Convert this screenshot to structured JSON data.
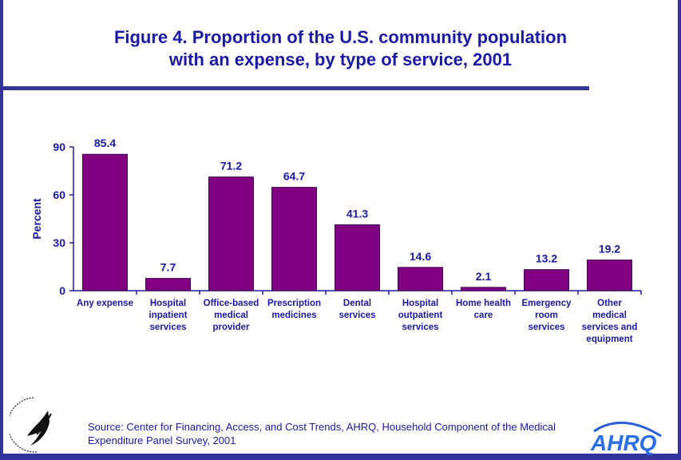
{
  "title_line1": "Figure 4. Proportion of the U.S. community population",
  "title_line2": "with an expense, by type of service, 2001",
  "source_line1": "Source: Center for Financing, Access, and Cost Trends, AHRQ, Household Component of the Medical",
  "source_line2": "Expenditure Panel Survey, 2001",
  "logos": {
    "left": "Department of Health & Human Services USA",
    "right": "AHRQ"
  },
  "colors": {
    "bar": "#800080",
    "text": "#1a1aa6",
    "frame": "#333399"
  },
  "chart_data": {
    "type": "bar",
    "title": "Figure 4. Proportion of the U.S. community population with an expense, by type of service, 2001",
    "ylabel": "Percent",
    "xlabel": "",
    "ylim": [
      0,
      90
    ],
    "yticks": [
      0,
      30,
      60,
      90
    ],
    "grid": false,
    "categories": [
      [
        "Any expense"
      ],
      [
        "Hospital",
        "inpatient",
        "services"
      ],
      [
        "Office-based",
        "medical",
        "provider"
      ],
      [
        "Prescription",
        "medicines"
      ],
      [
        "Dental",
        "services"
      ],
      [
        "Hospital",
        "outpatient",
        "services"
      ],
      [
        "Home health",
        "care"
      ],
      [
        "Emergency",
        "room",
        "services"
      ],
      [
        "Other",
        "medical",
        "services and",
        "equipment"
      ]
    ],
    "values": [
      85.4,
      7.7,
      71.2,
      64.7,
      41.3,
      14.6,
      2.1,
      13.2,
      19.2
    ],
    "value_labels": [
      "85.4",
      "7.7",
      "71.2",
      "64.7",
      "41.3",
      "14.6",
      "2.1",
      "13.2",
      "19.2"
    ]
  }
}
